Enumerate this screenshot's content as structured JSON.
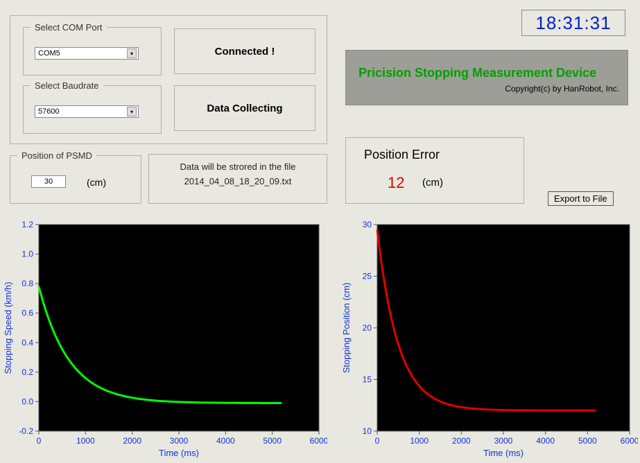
{
  "clock": {
    "time": "18:31:31",
    "color": "#0020d0"
  },
  "com": {
    "groupLabel": "Select COM Port",
    "value": "COM5"
  },
  "baud": {
    "groupLabel": "Select Baudrate",
    "value": "57600"
  },
  "status1": {
    "label": "Connected !"
  },
  "status2": {
    "label": "Data Collecting"
  },
  "titlePanel": {
    "main": "Pricision Stopping Measurement Device",
    "copyright": "Copyright(c) by HanRobot, Inc.",
    "mainColor": "#00a000",
    "bg": "#9e9e98"
  },
  "psmd": {
    "groupLabel": "Position of PSMD",
    "value": "30",
    "unit": "(cm)"
  },
  "fileInfo": {
    "line1": "Data will be strored in the file",
    "line2": "2014_04_08_18_20_09.txt"
  },
  "posError": {
    "label": "Position Error",
    "value": "12",
    "unit": "(cm)",
    "valueColor": "#e00000"
  },
  "exportBtn": {
    "label": "Export to File"
  },
  "chartLeft": {
    "type": "line",
    "xlabel": "Time (ms)",
    "ylabel": "Stopping Speed (km/h)",
    "xlim": [
      0,
      6000
    ],
    "ylim": [
      -0.2,
      1.2
    ],
    "xtick_step": 1000,
    "ytick_step": 0.2,
    "line_color": "#00ff00",
    "line_width": 3,
    "plot_bg": "#000000",
    "axis_color": "#555555",
    "label_color": "#1030e0",
    "data_xrange": [
      0,
      5200
    ],
    "curve": {
      "y0": 0.78,
      "y_inf": -0.01,
      "tau": 650
    }
  },
  "chartRight": {
    "type": "line",
    "xlabel": "Time (ms)",
    "ylabel": "Stopping Position (cm)",
    "xlim": [
      0,
      6000
    ],
    "ylim": [
      10,
      30
    ],
    "xtick_step": 1000,
    "ytick_step": 5,
    "line_color": "#e00000",
    "line_width": 3,
    "plot_bg": "#000000",
    "axis_color": "#555555",
    "label_color": "#1030e0",
    "data_xrange": [
      0,
      5200
    ],
    "curve": {
      "y0": 29.5,
      "y_inf": 12.0,
      "tau": 500
    }
  }
}
